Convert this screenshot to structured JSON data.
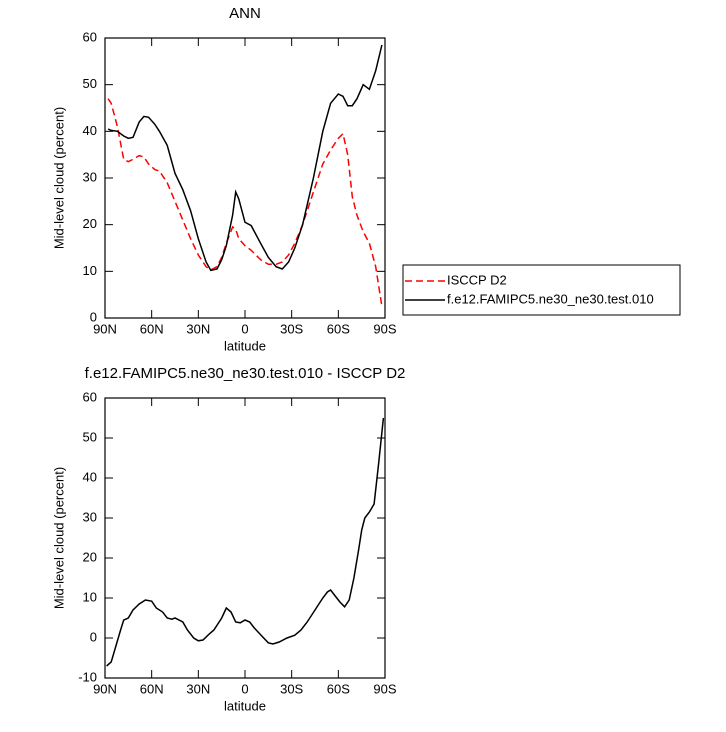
{
  "chart_data": [
    {
      "type": "line",
      "title": "ANN",
      "xlabel": "latitude",
      "ylabel": "Mid-level cloud (percent)",
      "x": [
        88,
        86,
        82,
        78,
        75,
        72,
        68,
        65,
        62,
        58,
        55,
        50,
        45,
        40,
        35,
        30,
        25,
        22,
        18,
        15,
        12,
        8,
        6,
        4,
        0,
        -4,
        -10,
        -15,
        -20,
        -24,
        -28,
        -32,
        -37,
        -44,
        -50,
        -55,
        -60,
        -63,
        -66,
        -69,
        -72,
        -76,
        -80,
        -84,
        -88
      ],
      "series": [
        {
          "name": "ISCCP D2",
          "color": "#ff0000",
          "linestyle": "dashed",
          "values": [
            47,
            46,
            41,
            34,
            33.5,
            34,
            34.8,
            34.5,
            33,
            31.8,
            31.5,
            29,
            25,
            21,
            17,
            13.5,
            11,
            10.3,
            11,
            13,
            16,
            19.5,
            19,
            17,
            15.5,
            14.5,
            12.5,
            11.5,
            11.5,
            12,
            13.5,
            16,
            20,
            27,
            33,
            36,
            38.5,
            39.5,
            35,
            26,
            22,
            18.5,
            16,
            11,
            2.5
          ]
        },
        {
          "name": "f.e12.FAMIPC5.ne30_ne30.test.010",
          "color": "#000000",
          "linestyle": "solid",
          "values": [
            40.5,
            40.2,
            40,
            39,
            38.5,
            38.7,
            42,
            43.2,
            43,
            41.5,
            40,
            37,
            31,
            27.5,
            23,
            17,
            12,
            10.2,
            10.5,
            12.5,
            15.5,
            22,
            27,
            25.5,
            20.5,
            19.8,
            16,
            13,
            11,
            10.5,
            12,
            15,
            20,
            30,
            40,
            46,
            48,
            47.5,
            45.5,
            45.5,
            47,
            50,
            49,
            53,
            58.5
          ]
        }
      ],
      "xlim": [
        90,
        -90
      ],
      "xticks": [
        {
          "value": 90,
          "label": "90N"
        },
        {
          "value": 60,
          "label": "60N"
        },
        {
          "value": 30,
          "label": "30N"
        },
        0,
        {
          "value": -30,
          "label": "30S"
        },
        {
          "value": -60,
          "label": "60S"
        },
        {
          "value": -90,
          "label": "90S"
        }
      ],
      "ylim": [
        0,
        60
      ],
      "yticks": [
        0,
        10,
        20,
        30,
        40,
        50,
        60
      ],
      "legend": "right"
    },
    {
      "type": "line",
      "title": "f.e12.FAMIPC5.ne30_ne30.test.010 - ISCCP D2",
      "xlabel": "latitude",
      "ylabel": "Mid-level cloud (percent)",
      "x": [
        89,
        86,
        83,
        80,
        78,
        75,
        72,
        68,
        64,
        60,
        57,
        53,
        50,
        47,
        45,
        40,
        37,
        33,
        30,
        27,
        23,
        20,
        15,
        12,
        9,
        6,
        3,
        0,
        -3,
        -6,
        -12,
        -15,
        -18,
        -22,
        -27,
        -32,
        -36,
        -40,
        -45,
        -50,
        -53,
        -55,
        -58,
        -61,
        -64,
        -67,
        -70,
        -73,
        -75,
        -77,
        -80,
        -83,
        -86,
        -89
      ],
      "values": [
        -7,
        -6,
        -2,
        2,
        4.5,
        5,
        7,
        8.5,
        9.5,
        9.2,
        7.5,
        6.5,
        5,
        4.7,
        5,
        4,
        2,
        0,
        -0.7,
        -0.5,
        1,
        2,
        5,
        7.5,
        6.5,
        4,
        3.8,
        4.5,
        4,
        2.5,
        0,
        -1.2,
        -1.5,
        -1,
        0,
        0.7,
        2,
        4,
        7,
        10,
        11.5,
        12,
        10.5,
        9,
        7.8,
        9.5,
        15,
        22,
        27,
        30,
        31.5,
        33.5,
        44,
        55
      ],
      "color": "#000000",
      "xlim": [
        90,
        -90
      ],
      "xticks": [
        {
          "value": 90,
          "label": "90N"
        },
        {
          "value": 60,
          "label": "60N"
        },
        {
          "value": 30,
          "label": "30N"
        },
        0,
        {
          "value": -30,
          "label": "30S"
        },
        {
          "value": -60,
          "label": "60S"
        },
        {
          "value": -90,
          "label": "90S"
        }
      ],
      "ylim": [
        -10,
        60
      ],
      "yticks": [
        -10,
        0,
        10,
        20,
        30,
        40,
        50,
        60
      ]
    }
  ]
}
